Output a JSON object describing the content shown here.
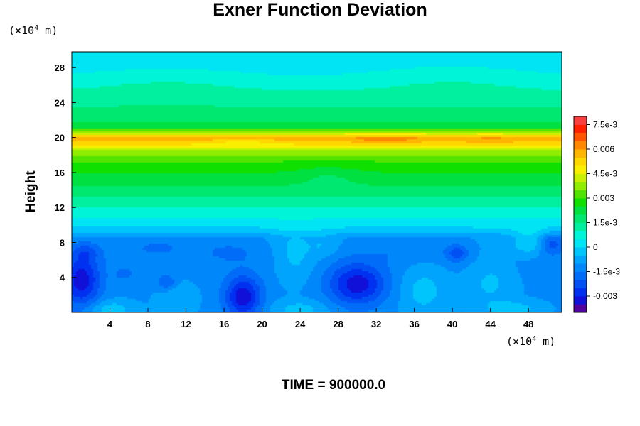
{
  "chart_data": {
    "type": "heatmap",
    "title": "Exner Function Deviation",
    "ylabel": "Height",
    "xlabel": "",
    "x_unit_prefix": "(×10",
    "x_unit_exp": "4",
    "x_unit_suffix": " m)",
    "y_unit_prefix": "(×10",
    "y_unit_exp": "4",
    "y_unit_suffix": " m)",
    "footer": "TIME = 900000.0",
    "xlim": [
      0,
      51.5
    ],
    "ylim": [
      0,
      29.8
    ],
    "x_ticks": [
      4,
      8,
      12,
      16,
      20,
      24,
      28,
      32,
      36,
      40,
      44,
      48
    ],
    "y_ticks": [
      4,
      8,
      12,
      16,
      20,
      24,
      28
    ],
    "x_tick_labels": [
      "4",
      "8",
      "12",
      "16",
      "20",
      "24",
      "28",
      "32",
      "36",
      "40",
      "44",
      "48"
    ],
    "y_tick_labels": [
      "4",
      "8",
      "12",
      "16",
      "20",
      "24",
      "28"
    ],
    "colorbar": {
      "range": [
        -0.004,
        0.008
      ],
      "step": 0.0005,
      "ticks": [
        -0.003,
        -0.0015,
        0,
        0.0015,
        0.003,
        0.0045,
        0.006,
        0.0075
      ],
      "tick_labels": [
        "-0.003",
        "-1.5e-3",
        "0",
        "1.5e-3",
        "0.003",
        "4.5e-3",
        "0.006",
        "7.5e-3"
      ],
      "colors": [
        "#5000a0",
        "#1010d8",
        "#0030f0",
        "#0050f4",
        "#006cf8",
        "#0088fa",
        "#00a4fc",
        "#00c4fc",
        "#00e4f4",
        "#00f4d8",
        "#00f0a0",
        "#00e870",
        "#00e040",
        "#10e000",
        "#50e400",
        "#90ec00",
        "#c8f000",
        "#f8f000",
        "#ffd800",
        "#ffb400",
        "#ff8800",
        "#ff5400",
        "#ff2000",
        "#f84040"
      ]
    },
    "layers": [
      {
        "y": 0,
        "value": -0.0011
      },
      {
        "y": 3,
        "value": -0.0011
      },
      {
        "y": 6,
        "value": -0.0012
      },
      {
        "y": 8.5,
        "value": -0.001
      },
      {
        "y": 9.5,
        "value": -0.0001
      },
      {
        "y": 11,
        "value": 0.0006
      },
      {
        "y": 13,
        "value": 0.0014
      },
      {
        "y": 15,
        "value": 0.0022
      },
      {
        "y": 17,
        "value": 0.0028
      },
      {
        "y": 18.5,
        "value": 0.004
      },
      {
        "y": 19.4,
        "value": 0.0053
      },
      {
        "y": 19.9,
        "value": 0.0058
      },
      {
        "y": 20.6,
        "value": 0.004
      },
      {
        "y": 21.2,
        "value": 0.0022
      },
      {
        "y": 23,
        "value": 0.0016
      },
      {
        "y": 25,
        "value": 0.0011
      },
      {
        "y": 27,
        "value": 0.0005
      },
      {
        "y": 29.8,
        "value": 0.0001
      }
    ],
    "blobs": [
      {
        "x": 1.0,
        "y": 3.6,
        "sx": 2.0,
        "sy": 3.0,
        "amp": -0.0022
      },
      {
        "x": 1.5,
        "y": 7.0,
        "sx": 1.5,
        "sy": 1.0,
        "amp": -0.0008
      },
      {
        "x": 18.0,
        "y": 1.8,
        "sx": 1.9,
        "sy": 2.4,
        "amp": -0.0023
      },
      {
        "x": 30.0,
        "y": 3.2,
        "sx": 3.0,
        "sy": 2.4,
        "amp": -0.0022
      },
      {
        "x": 40.5,
        "y": 6.8,
        "sx": 1.2,
        "sy": 1.0,
        "amp": -0.0012
      },
      {
        "x": 50.5,
        "y": 7.8,
        "sx": 1.3,
        "sy": 1.2,
        "amp": -0.0012
      },
      {
        "x": 10.0,
        "y": 3.4,
        "sx": 1.0,
        "sy": 0.9,
        "amp": -0.001
      },
      {
        "x": 5.5,
        "y": 4.4,
        "sx": 1.0,
        "sy": 0.7,
        "amp": -0.0006
      },
      {
        "x": 9.0,
        "y": 7.5,
        "sx": 3.5,
        "sy": 1.2,
        "amp": -0.0005
      },
      {
        "x": 35.0,
        "y": 7.2,
        "sx": 4.0,
        "sy": 1.3,
        "amp": -0.0004
      },
      {
        "x": 16.5,
        "y": 7.0,
        "sx": 3.0,
        "sy": 1.2,
        "amp": -0.0005
      },
      {
        "x": 23.5,
        "y": 6.5,
        "sx": 2.0,
        "sy": 3.0,
        "amp": 0.0008
      },
      {
        "x": 37.0,
        "y": 2.5,
        "sx": 2.5,
        "sy": 3.0,
        "amp": 0.0008
      },
      {
        "x": 44.0,
        "y": 3.5,
        "sx": 2.5,
        "sy": 3.0,
        "amp": 0.0007
      },
      {
        "x": 11.0,
        "y": 1.5,
        "sx": 2.0,
        "sy": 2.0,
        "amp": 0.0006
      },
      {
        "x": 4.0,
        "y": 0.4,
        "sx": 2.5,
        "sy": 1.0,
        "amp": 0.0009
      },
      {
        "x": 24.0,
        "y": 0.4,
        "sx": 3.0,
        "sy": 1.0,
        "amp": 0.0008
      },
      {
        "x": 46.5,
        "y": 0.4,
        "sx": 3.0,
        "sy": 1.0,
        "amp": 0.0008
      },
      {
        "x": 48.0,
        "y": 8.0,
        "sx": 1.8,
        "sy": 1.5,
        "amp": 0.001
      },
      {
        "x": 26.5,
        "y": 7.5,
        "sx": 1.5,
        "sy": 1.5,
        "amp": 0.0005
      },
      {
        "x": 33.0,
        "y": 19.8,
        "sx": 4.0,
        "sy": 0.5,
        "amp": 0.0006
      },
      {
        "x": 44.0,
        "y": 19.7,
        "sx": 3.0,
        "sy": 0.5,
        "amp": 0.0004
      },
      {
        "x": 18.0,
        "y": 19.4,
        "sx": 3.0,
        "sy": 0.4,
        "amp": -0.0005
      },
      {
        "x": 27.0,
        "y": 15.5,
        "sx": 3.0,
        "sy": 1.2,
        "amp": -0.0004
      },
      {
        "x": 10.0,
        "y": 26.0,
        "sx": 8.0,
        "sy": 2.0,
        "amp": 0.0003
      },
      {
        "x": 40.0,
        "y": 26.5,
        "sx": 8.0,
        "sy": 2.0,
        "amp": 0.0003
      }
    ]
  }
}
